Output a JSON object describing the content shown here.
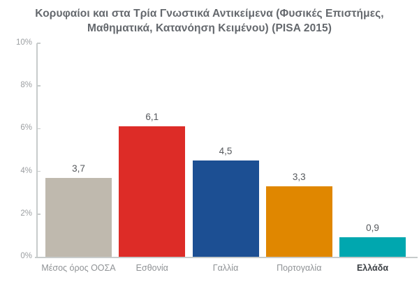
{
  "title": {
    "line1": "Κορυφαίοι και στα Τρία Γνωστικά Αντικείμενα (Φυσικές Επιστήμες,",
    "line2": "Μαθηματικά, Κατανόηση Κειμένου) (PISA 2015)"
  },
  "chart_data": {
    "type": "bar",
    "title": "Κορυφαίοι και στα Τρία Γνωστικά Αντικείμενα (Φυσικές Επιστήμες, Μαθηματικά, Κατανόηση Κειμένου) (PISA 2015)",
    "categories": [
      "Μέσος όρος ΟΟΣΑ",
      "Εσθονία",
      "Γαλλία",
      "Πορτογαλία",
      "Ελλάδα"
    ],
    "values": [
      3.7,
      6.1,
      4.5,
      3.3,
      0.9
    ],
    "value_labels": [
      "3,7",
      "6,1",
      "4,5",
      "3,3",
      "0,9"
    ],
    "bar_colors": [
      "#bfb9ae",
      "#dd2c27",
      "#1c4f93",
      "#e08700",
      "#00a7af"
    ],
    "emphasized_category": "Ελλάδα",
    "xlabel": "",
    "ylabel": "",
    "ylim": [
      0,
      10
    ],
    "ytick_values": [
      0,
      2,
      4,
      6,
      8,
      10
    ],
    "ytick_labels": [
      "0%",
      "2%",
      "4%",
      "6%",
      "8%",
      "10%"
    ],
    "grid": false,
    "legend": "none"
  },
  "colors": {
    "background": "#ffffff",
    "title_text": "#64686d",
    "value_label_text": "#55585c",
    "category_label_text": "#8f9295",
    "emphasized_label_text": "#3c4045",
    "axis_line": "#c7cbcb",
    "tick_label_text": "#9b9ea1"
  }
}
